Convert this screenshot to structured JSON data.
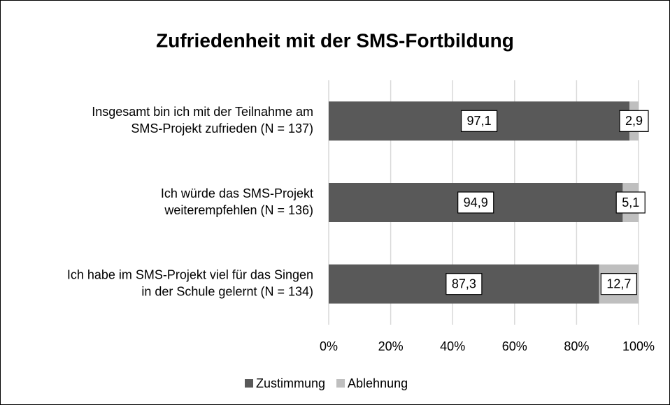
{
  "chart_data": {
    "type": "stacked_bar_horizontal",
    "title": "Zufriedenheit mit der SMS-Fortbildung",
    "categories": [
      [
        "Insgesamt bin ich mit der Teilnahme am",
        "SMS-Projekt zufrieden (N = 137)"
      ],
      [
        "Ich würde das SMS-Projekt",
        "weiterempfehlen (N = 136)"
      ],
      [
        "Ich habe im SMS-Projekt viel für das Singen",
        "in der Schule gelernt (N = 134)"
      ]
    ],
    "series": [
      {
        "name": "Zustimmung",
        "color": "#595959",
        "values": [
          97.1,
          94.9,
          87.3
        ],
        "value_labels": [
          "97,1",
          "94,9",
          "87,3"
        ]
      },
      {
        "name": "Ablehnung",
        "color": "#bfbfbf",
        "values": [
          2.9,
          5.1,
          12.7
        ],
        "value_labels": [
          "2,9",
          "5,1",
          "12,7"
        ]
      }
    ],
    "xlim": [
      0,
      100
    ],
    "xticks": [
      {
        "value": 0,
        "label": "0%"
      },
      {
        "value": 20,
        "label": "20%"
      },
      {
        "value": 40,
        "label": "40%"
      },
      {
        "value": 60,
        "label": "60%"
      },
      {
        "value": 80,
        "label": "80%"
      },
      {
        "value": 100,
        "label": "100%"
      }
    ],
    "grid": true,
    "legend": "bottom"
  }
}
